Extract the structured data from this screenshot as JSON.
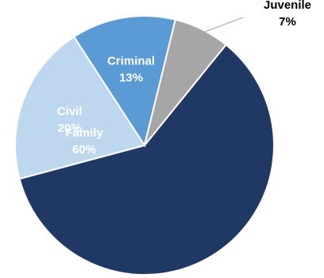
{
  "chart_data": {
    "type": "pie",
    "slices": [
      {
        "name": "Family",
        "value": 60,
        "label_value": "60%",
        "color": "#203864",
        "label_color": "#ffffff",
        "label_pos": "inside"
      },
      {
        "name": "Civil",
        "value": 20,
        "label_value": "20%",
        "color": "#bdd7ee",
        "label_color": "#ffffff",
        "label_pos": "inside"
      },
      {
        "name": "Criminal",
        "value": 13,
        "label_value": "13%",
        "color": "#5b9bd5",
        "label_color": "#ffffff",
        "label_pos": "inside"
      },
      {
        "name": "Juvenile",
        "value": 7,
        "label_value": "7%",
        "color": "#a6a6a6",
        "label_color": "#000000",
        "label_pos": "outside"
      }
    ],
    "start_angle_deg": 39,
    "direction": "clockwise",
    "title": "",
    "legend": "none"
  }
}
